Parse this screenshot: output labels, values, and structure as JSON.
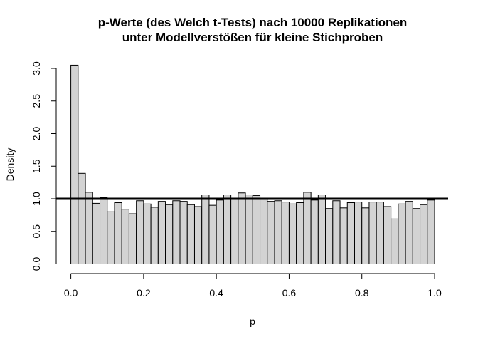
{
  "chart_data": {
    "type": "bar",
    "title": "p-Werte (des Welch t-Tests) nach 10000 Replikationen",
    "subtitle": "unter Modellverstößen für kleine Stichproben",
    "xlabel": "p",
    "ylabel": "Density",
    "xlim": [
      0,
      1
    ],
    "ylim": [
      0,
      3.05
    ],
    "grid": false,
    "x_ticks": [
      0.0,
      0.2,
      0.4,
      0.6,
      0.8,
      1.0
    ],
    "x_tick_labels": [
      "0.0",
      "0.2",
      "0.4",
      "0.6",
      "0.8",
      "1.0"
    ],
    "y_ticks": [
      0.0,
      0.5,
      1.0,
      1.5,
      2.0,
      2.5,
      3.0
    ],
    "y_tick_labels": [
      "0.0",
      "0.5",
      "1.0",
      "1.5",
      "2.0",
      "2.5",
      "3.0"
    ],
    "bin_width": 0.02,
    "bin_start": 0,
    "values": [
      3.05,
      1.39,
      1.1,
      0.93,
      1.02,
      0.8,
      0.94,
      0.84,
      0.77,
      0.97,
      0.92,
      0.87,
      0.96,
      0.91,
      0.97,
      0.96,
      0.91,
      0.88,
      1.06,
      0.9,
      0.98,
      1.06,
      0.99,
      1.09,
      1.06,
      1.05,
      0.99,
      0.96,
      0.97,
      0.95,
      0.92,
      0.94,
      1.1,
      0.98,
      1.06,
      0.85,
      0.97,
      0.86,
      0.94,
      0.95,
      0.86,
      0.95,
      0.95,
      0.88,
      0.69,
      0.92,
      0.96,
      0.85,
      0.91,
      0.98
    ],
    "reference_line": {
      "y": 1.0
    },
    "bar_fill": "#d3d3d3",
    "bar_stroke": "#000000"
  }
}
